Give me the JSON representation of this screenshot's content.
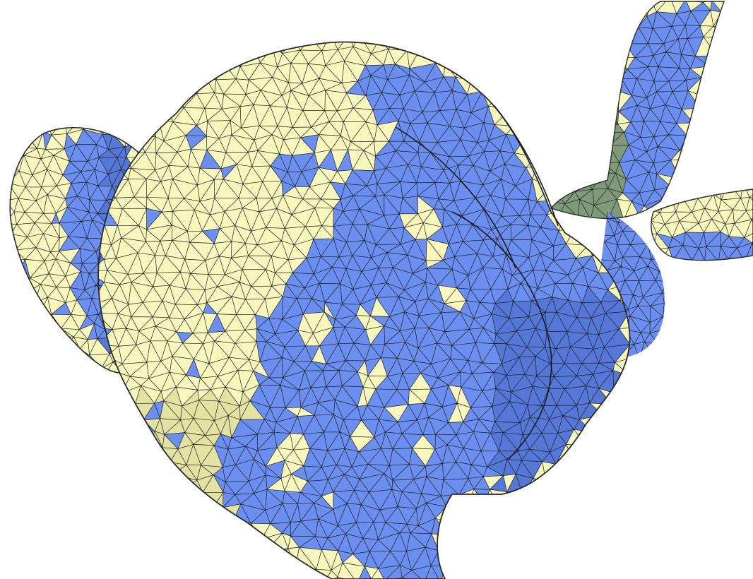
{
  "viewport": {
    "background": "#ffffff",
    "mesh": {
      "colors": {
        "region_a": "#f8f7bd",
        "region_b": "#6b8ff0",
        "region_b_shadow": "#5577d8",
        "region_a_shadow": "#e3e2a2",
        "ear_shadow": "#7f9a78",
        "edge": "#1c1c1c"
      }
    }
  }
}
